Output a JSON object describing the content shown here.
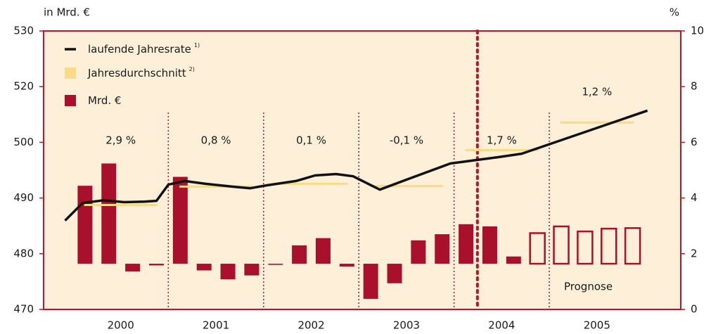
{
  "chart_data": {
    "type": "bar_line",
    "y_axis_label": "in Mrd. €",
    "y2_axis_label": "%",
    "ylim": [
      470,
      530
    ],
    "yticks": [
      470,
      480,
      490,
      500,
      520,
      530
    ],
    "y2lim": [
      0,
      10
    ],
    "y2ticks": [
      0,
      2,
      4,
      6,
      8,
      10
    ],
    "xlim": [
      1999.69,
      2006.38
    ],
    "xticks": [
      {
        "value": 2000.5,
        "label": "2000"
      },
      {
        "value": 2001.5,
        "label": "2001"
      },
      {
        "value": 2002.5,
        "label": "2002"
      },
      {
        "value": 2003.5,
        "label": "2003"
      },
      {
        "value": 2004.5,
        "label": "2004"
      },
      {
        "value": 2005.5,
        "label": "2005"
      }
    ],
    "bar_baseline": 478.2,
    "series": [
      {
        "name": "laufende Jahresrate",
        "note": "1)",
        "color": "#111111",
        "axis": "y2",
        "x": [
          1999.915,
          2000.1,
          2000.32,
          2000.535,
          2000.75,
          2000.875,
          2001.0,
          2001.17,
          2001.39,
          2001.67,
          2001.86,
          2002.04,
          2002.34,
          2002.54,
          2002.76,
          2002.94,
          2003.22,
          2003.54,
          2003.96,
          2004.47,
          2004.71,
          2006.03
        ],
        "values": [
          3.19,
          3.82,
          3.92,
          3.85,
          3.87,
          3.9,
          4.48,
          4.61,
          4.51,
          4.41,
          4.35,
          4.46,
          4.61,
          4.81,
          4.86,
          4.78,
          4.3,
          4.71,
          5.24,
          5.47,
          5.59,
          7.14
        ]
      },
      {
        "name": "Jahresdurchschnitt",
        "note": "2)",
        "color": "#f9d98a",
        "axis": "y2",
        "values": [
          3.75,
          4.41,
          4.51,
          4.43,
          5.72,
          6.71
        ],
        "value_labels": [
          "2,9 %",
          "0,8 %",
          "0,1 %",
          "-0,1 %",
          "1,7 %",
          "1,2 %"
        ]
      },
      {
        "name": "Mrd. €",
        "color": "#a8102c",
        "x": [
          2000.125,
          2000.375,
          2000.625,
          2000.875,
          2001.125,
          2001.375,
          2001.625,
          2001.875,
          2002.125,
          2002.375,
          2002.625,
          2002.875,
          2003.125,
          2003.375,
          2003.625,
          2003.875,
          2004.125,
          2004.375,
          2004.625,
          2004.875,
          2005.125,
          2005.375,
          2005.625,
          2005.875
        ],
        "values": [
          492.2,
          496.2,
          476.8,
          477.9,
          493.8,
          477.0,
          475.4,
          476.1,
          478.0,
          481.5,
          482.8,
          477.7,
          471.9,
          474.7,
          482.4,
          483.5,
          485.3,
          484.9,
          479.5,
          483.7,
          484.9,
          484.0,
          484.5,
          484.6
        ],
        "styles": [
          "filled",
          "filled",
          "filled",
          "filled",
          "filled",
          "filled",
          "filled",
          "filled",
          "filled",
          "filled",
          "filled",
          "filled",
          "filled",
          "filled",
          "filled",
          "filled",
          "filled",
          "filled",
          "filled",
          "outline",
          "outline",
          "outline",
          "outline",
          "outline"
        ]
      }
    ],
    "annotation": "Prognose"
  }
}
